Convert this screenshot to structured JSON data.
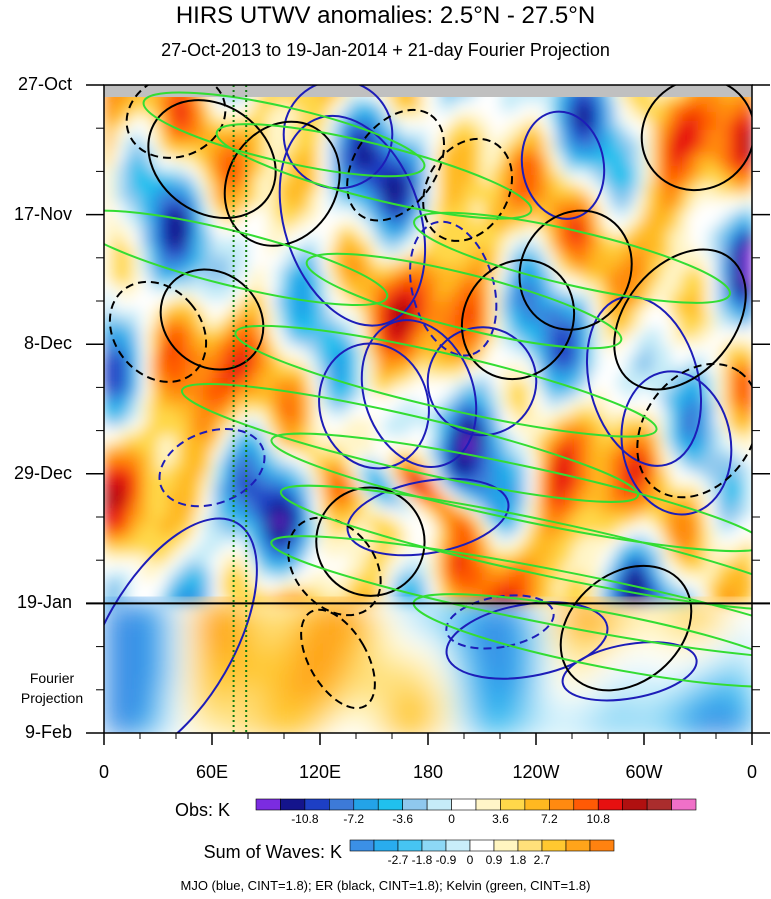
{
  "chart_data": {
    "type": "heatmap",
    "title": "HIRS UTWV anomalies: 2.5°N - 27.5°N",
    "subtitle": "27-Oct-2013 to 19-Jan-2014 + 21-day Fourier Projection",
    "y_tick_labels": [
      "27-Oct",
      "17-Nov",
      "8-Dec",
      "29-Dec",
      "19-Jan",
      "9-Feb"
    ],
    "x_tick_labels": [
      "0",
      "60E",
      "120E",
      "180",
      "120W",
      "60W",
      "0"
    ],
    "xlim_degrees_east": [
      0,
      360
    ],
    "x_ticks_degrees_east": [
      0,
      60,
      120,
      180,
      240,
      300,
      360
    ],
    "ylim_days_from_27_oct": [
      0,
      105
    ],
    "y_ticks_days": [
      0,
      21,
      42,
      63,
      84,
      105
    ],
    "observation_end_day": 84,
    "projection_label": "Fourier Projection",
    "reference_longitudes_deg_east": [
      72,
      79
    ],
    "obs_colorbar": {
      "label": "Obs: K",
      "tick_labels": [
        "-10.8",
        "-7.2",
        "-3.6",
        "0",
        "3.6",
        "7.2",
        "10.8"
      ],
      "colors": [
        "#7b2ce0",
        "#14148c",
        "#1d3fc4",
        "#3d7ad8",
        "#23a3e8",
        "#20c0ee",
        "#8fc8ee",
        "#c6ecf8",
        "#ffffff",
        "#fff5c8",
        "#ffd84a",
        "#ffb820",
        "#ff8a10",
        "#ff5a05",
        "#e61010",
        "#b01010",
        "#aa2d2d",
        "#f070c8"
      ]
    },
    "waves_colorbar": {
      "label": "Sum of Waves: K",
      "tick_labels": [
        "-2.7",
        "-1.8",
        "-0.9",
        "0",
        "0.9",
        "1.8",
        "2.7"
      ],
      "colors": [
        "#3b90e6",
        "#29acee",
        "#46c4f2",
        "#8dd8f6",
        "#c9eefa",
        "#ffffff",
        "#fff5c0",
        "#ffe07a",
        "#ffc830",
        "#ffa41a",
        "#ff8210"
      ]
    },
    "contour_legend": "MJO (blue, CINT=1.8); ER (black, CINT=1.8); Kelvin (green, CINT=1.8)",
    "mjo_color": "#1d1db8",
    "er_color": "#000000",
    "kelvin_color": "#33dd33",
    "reference_line_color": "#107a10"
  }
}
